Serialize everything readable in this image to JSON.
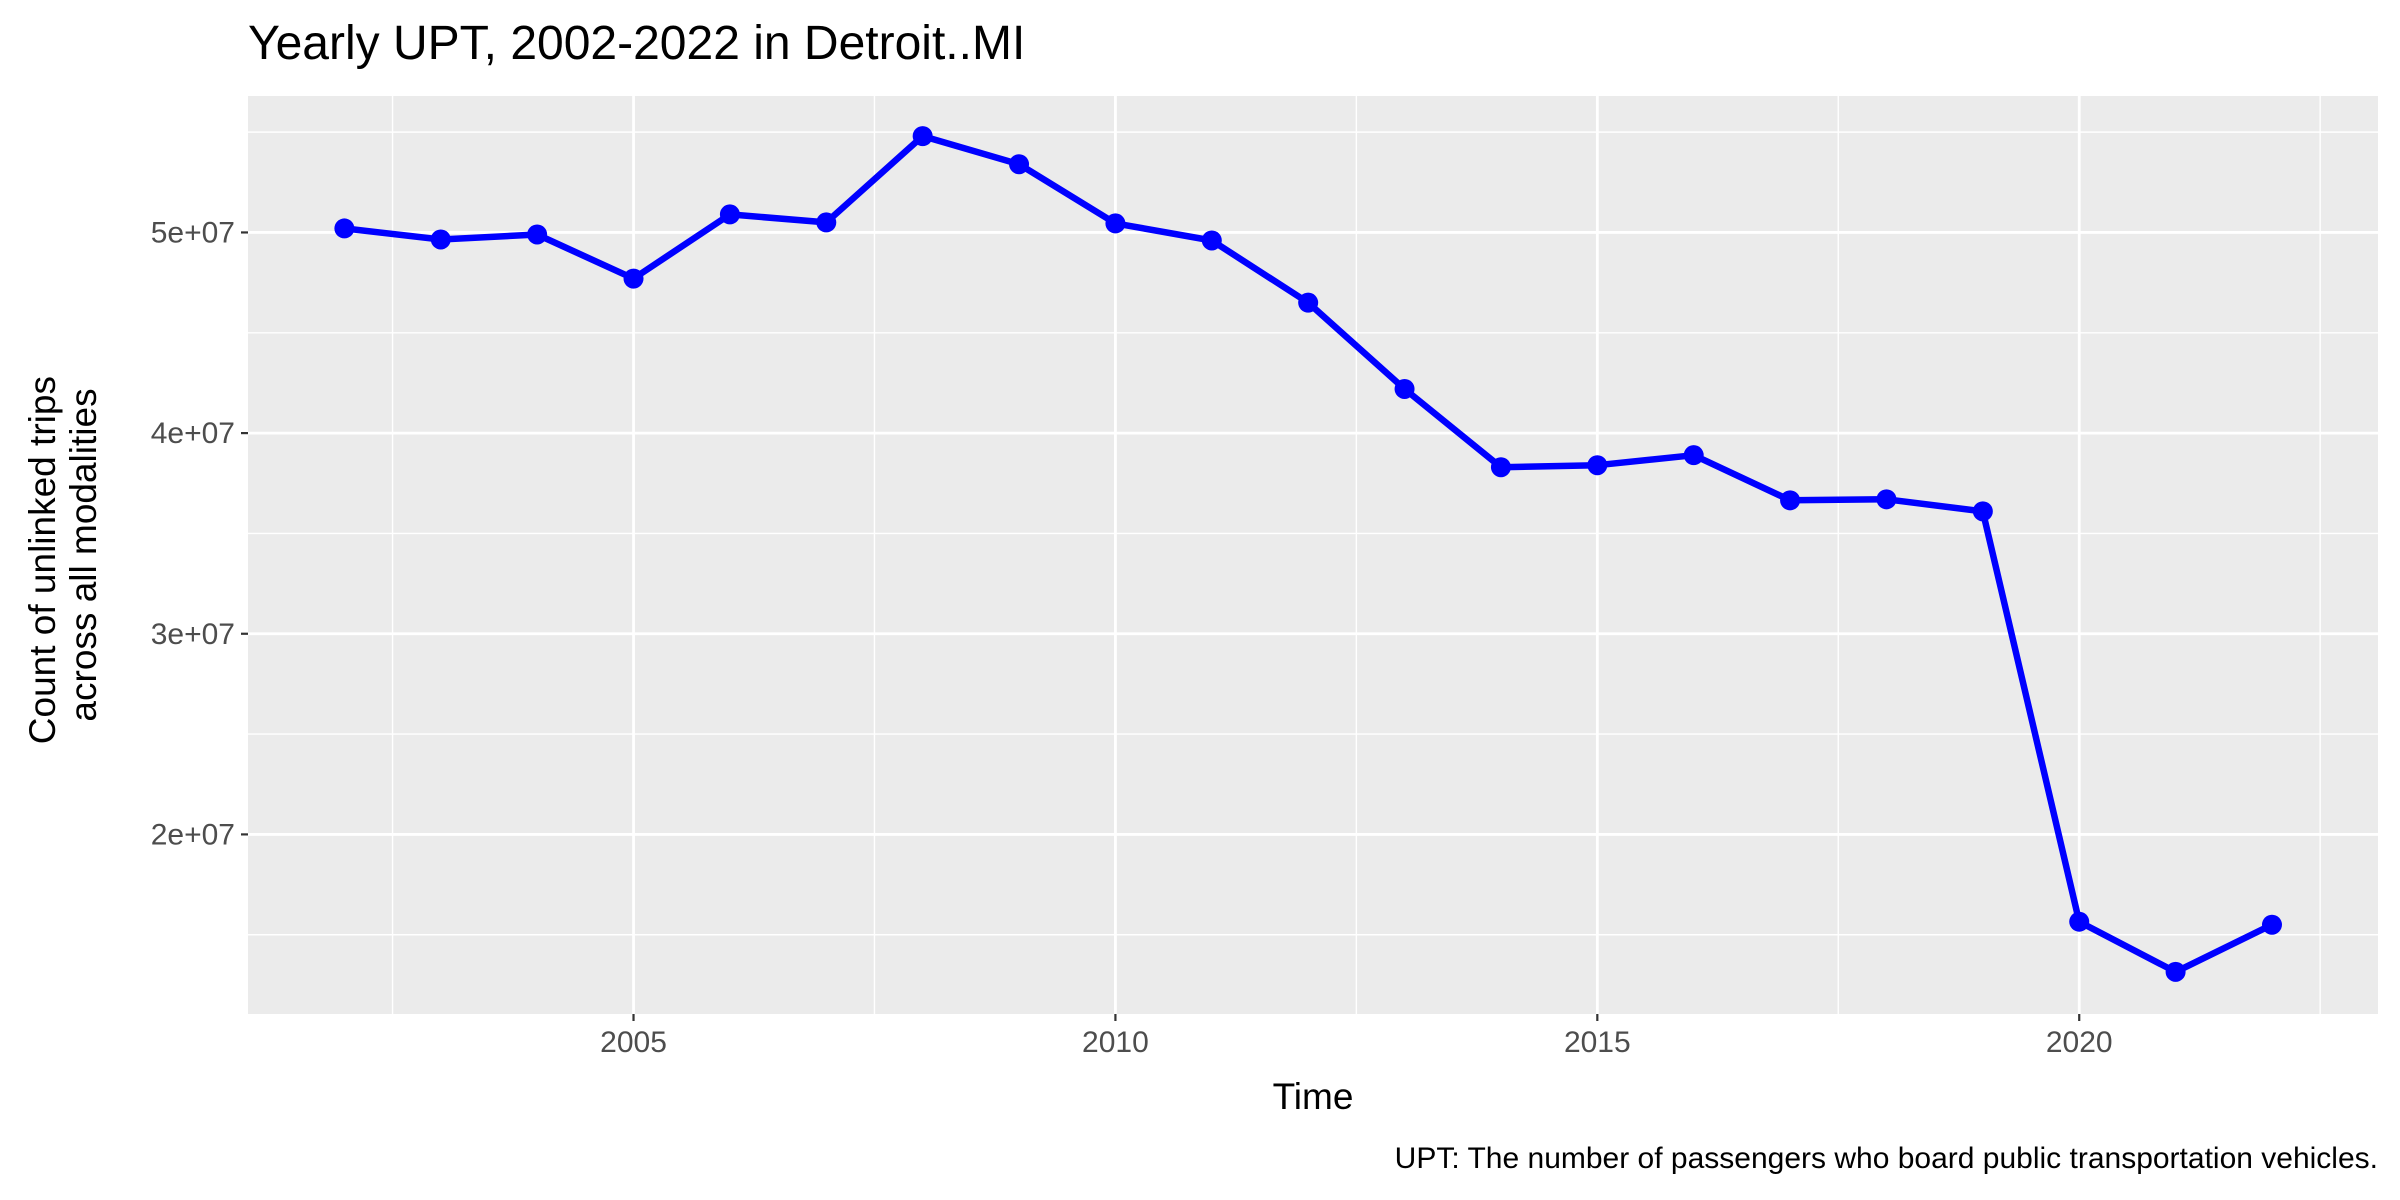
{
  "chart_data": {
    "type": "line",
    "title": "Yearly UPT, 2002-2022 in Detroit..MI",
    "xlabel": "Time",
    "ylabel": [
      "Count of unlinked trips",
      "across all modalities"
    ],
    "caption": "UPT: The number of passengers who board public transportation vehicles.",
    "xlim": [
      2001,
      2023.1
    ],
    "ylim": [
      11050000,
      56800000
    ],
    "x_ticks": [
      2005,
      2010,
      2015,
      2020
    ],
    "x_tick_labels": [
      "2005",
      "2010",
      "2015",
      "2020"
    ],
    "y_ticks": [
      20000000,
      30000000,
      40000000,
      50000000
    ],
    "y_tick_labels": [
      "2e+07",
      "3e+07",
      "4e+07",
      "5e+07"
    ],
    "grid": true,
    "colors": {
      "series": "#0000ff",
      "panel": "#ebebeb",
      "grid": "#ffffff"
    },
    "series": [
      {
        "x": [
          2002,
          2003,
          2004,
          2005,
          2006,
          2007,
          2008,
          2009,
          2010,
          2011,
          2012,
          2013,
          2014,
          2015,
          2016,
          2017,
          2018,
          2019,
          2020,
          2021,
          2022
        ],
        "values": [
          50200000,
          49650000,
          49900000,
          47700000,
          50900000,
          50500000,
          54800000,
          53400000,
          50450000,
          49600000,
          46500000,
          42200000,
          38300000,
          38400000,
          38900000,
          36650000,
          36700000,
          36100000,
          15650000,
          13150000,
          15500000
        ]
      }
    ]
  }
}
